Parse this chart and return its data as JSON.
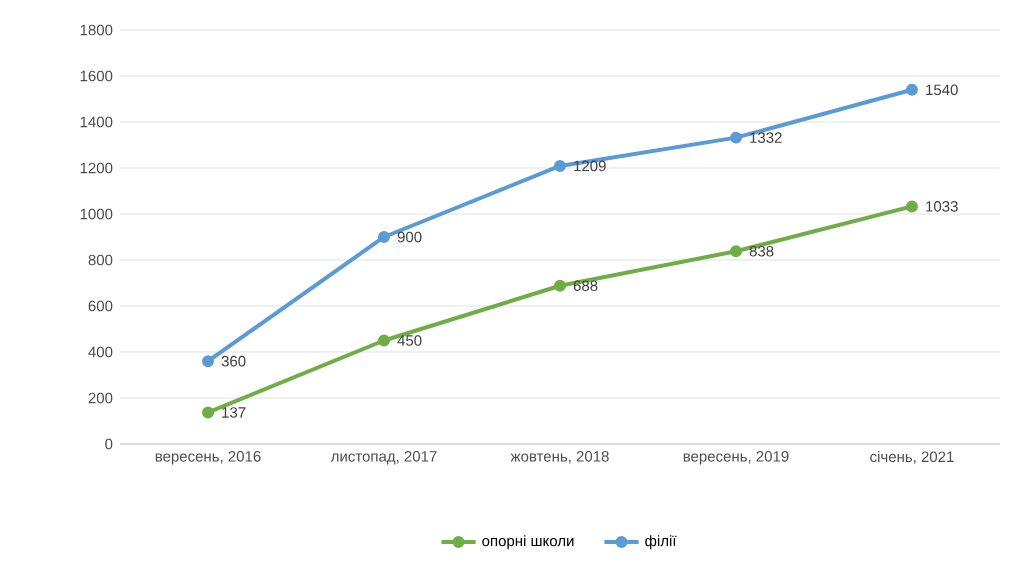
{
  "chart_data": {
    "type": "line",
    "categories": [
      "вересень, 2016",
      "листопад, 2017",
      "жовтень, 2018",
      "вересень, 2019",
      "січень, 2021"
    ],
    "series": [
      {
        "name": "опорні школи",
        "color": "#70ad47",
        "values": [
          137,
          450,
          688,
          838,
          1033
        ]
      },
      {
        "name": "філії",
        "color": "#5b9bd5",
        "values": [
          360,
          900,
          1209,
          1332,
          1540
        ]
      }
    ],
    "ylim": [
      0,
      1800
    ],
    "yticks": [
      0,
      200,
      400,
      600,
      800,
      1000,
      1200,
      1400,
      1600,
      1800
    ],
    "grid": "y",
    "legend": "bottom",
    "marker": "circle",
    "line_style": "solid",
    "data_labels": true
  }
}
